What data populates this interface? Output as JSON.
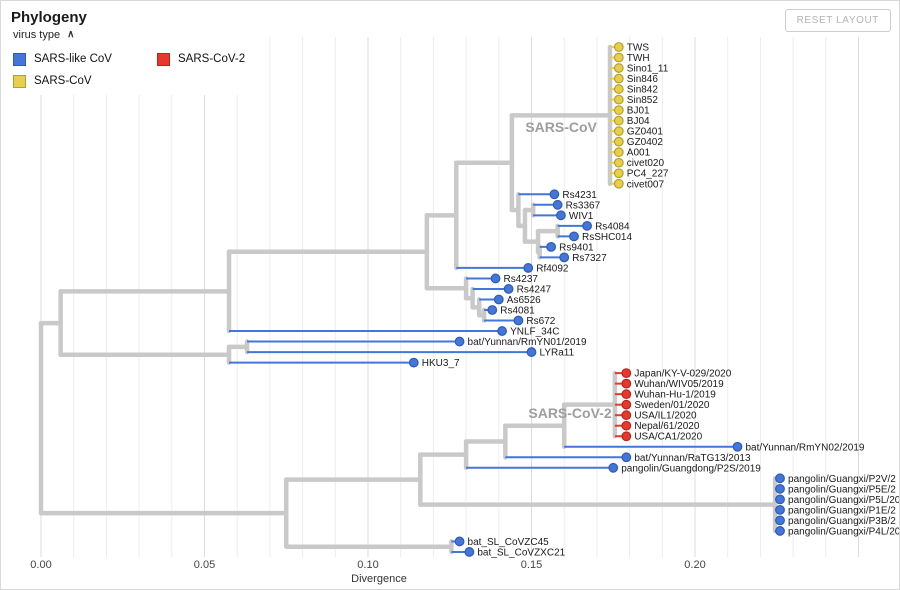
{
  "header": {
    "title": "Phylogeny",
    "reset_button": "RESET LAYOUT"
  },
  "legend": {
    "label": "virus type",
    "collapse_icon": "∧",
    "items": [
      {
        "label": "SARS-like CoV",
        "color": "#4376d8",
        "border": "#2c5cb4"
      },
      {
        "label": "SARS-CoV",
        "color": "#e7cf4b",
        "border": "#b3a02e"
      },
      {
        "label": "SARS-CoV-2",
        "color": "#e8372c",
        "border": "#b4271e"
      }
    ]
  },
  "chart_data": {
    "type": "phylogenetic-tree",
    "layout": "rectangular",
    "xlabel": "Divergence",
    "x_ticks": [
      "0.00",
      "0.05",
      "0.10",
      "0.15",
      "0.20"
    ],
    "x_tick_values": [
      0,
      0.05,
      0.1,
      0.15,
      0.2
    ],
    "xlim": [
      0,
      0.25
    ],
    "grid_step": 0.01,
    "grid_on": true,
    "branch_color": "#c9c9c9",
    "annotations": [
      {
        "text": "SARS-CoV",
        "d_end": 0.17,
        "row": 7.6
      },
      {
        "text": "SARS-CoV-2",
        "d_end": 0.1745,
        "row": 34.8
      }
    ],
    "types": {
      "sars_like": {
        "fill": "#4376d8",
        "stroke": "#2c5cb4"
      },
      "sars": {
        "fill": "#e7cf4b",
        "stroke": "#b3a02e"
      },
      "sars2": {
        "fill": "#e8372c",
        "stroke": "#b4271e"
      }
    },
    "leaves": [
      {
        "name": "TWS",
        "type": "sars",
        "d": 0.1767
      },
      {
        "name": "TWH",
        "type": "sars",
        "d": 0.1767
      },
      {
        "name": "Sino1_11",
        "type": "sars",
        "d": 0.1767
      },
      {
        "name": "Sin846",
        "type": "sars",
        "d": 0.1767
      },
      {
        "name": "Sin842",
        "type": "sars",
        "d": 0.1767
      },
      {
        "name": "Sin852",
        "type": "sars",
        "d": 0.1767
      },
      {
        "name": "BJ01",
        "type": "sars",
        "d": 0.1767
      },
      {
        "name": "BJ04",
        "type": "sars",
        "d": 0.1767
      },
      {
        "name": "GZ0401",
        "type": "sars",
        "d": 0.1767
      },
      {
        "name": "GZ0402",
        "type": "sars",
        "d": 0.1767
      },
      {
        "name": "A001",
        "type": "sars",
        "d": 0.1767
      },
      {
        "name": "civet020",
        "type": "sars",
        "d": 0.1767
      },
      {
        "name": "PC4_227",
        "type": "sars",
        "d": 0.1767
      },
      {
        "name": "civet007",
        "type": "sars",
        "d": 0.1767
      },
      {
        "name": "Rs4231",
        "type": "sars_like",
        "d": 0.157
      },
      {
        "name": "Rs3367",
        "type": "sars_like",
        "d": 0.158
      },
      {
        "name": "WIV1",
        "type": "sars_like",
        "d": 0.159
      },
      {
        "name": "Rs4084",
        "type": "sars_like",
        "d": 0.167
      },
      {
        "name": "RsSHC014",
        "type": "sars_like",
        "d": 0.163
      },
      {
        "name": "Rs9401",
        "type": "sars_like",
        "d": 0.156
      },
      {
        "name": "Rs7327",
        "type": "sars_like",
        "d": 0.16
      },
      {
        "name": "Rf4092",
        "type": "sars_like",
        "d": 0.149
      },
      {
        "name": "Rs4237",
        "type": "sars_like",
        "d": 0.139
      },
      {
        "name": "Rs4247",
        "type": "sars_like",
        "d": 0.143
      },
      {
        "name": "As6526",
        "type": "sars_like",
        "d": 0.14
      },
      {
        "name": "Rs4081",
        "type": "sars_like",
        "d": 0.138
      },
      {
        "name": "Rs672",
        "type": "sars_like",
        "d": 0.146
      },
      {
        "name": "YNLF_34C",
        "type": "sars_like",
        "d": 0.141
      },
      {
        "name": "bat/Yunnan/RmYN01/2019",
        "type": "sars_like",
        "d": 0.128
      },
      {
        "name": "LYRa11",
        "type": "sars_like",
        "d": 0.15
      },
      {
        "name": "HKU3_7",
        "type": "sars_like",
        "d": 0.114
      },
      {
        "name": "Japan/KY-V-029/2020",
        "type": "sars2",
        "d": 0.179
      },
      {
        "name": "Wuhan/WIV05/2019",
        "type": "sars2",
        "d": 0.179
      },
      {
        "name": "Wuhan-Hu-1/2019",
        "type": "sars2",
        "d": 0.179
      },
      {
        "name": "Sweden/01/2020",
        "type": "sars2",
        "d": 0.179
      },
      {
        "name": "USA/IL1/2020",
        "type": "sars2",
        "d": 0.179
      },
      {
        "name": "Nepal/61/2020",
        "type": "sars2",
        "d": 0.179
      },
      {
        "name": "USA/CA1/2020",
        "type": "sars2",
        "d": 0.179
      },
      {
        "name": "bat/Yunnan/RmYN02/2019",
        "type": "sars_like",
        "d": 0.213
      },
      {
        "name": "bat/Yunnan/RaTG13/2013",
        "type": "sars_like",
        "d": 0.179
      },
      {
        "name": "pangolin/Guangdong/P2S/2019",
        "type": "sars_like",
        "d": 0.175
      },
      {
        "name": "pangolin/Guangxi/P2V/2",
        "type": "sars_like",
        "d": 0.226
      },
      {
        "name": "pangolin/Guangxi/P5E/2",
        "type": "sars_like",
        "d": 0.226
      },
      {
        "name": "pangolin/Guangxi/P5L/20",
        "type": "sars_like",
        "d": 0.226
      },
      {
        "name": "pangolin/Guangxi/P1E/2",
        "type": "sars_like",
        "d": 0.226
      },
      {
        "name": "pangolin/Guangxi/P3B/2",
        "type": "sars_like",
        "d": 0.226
      },
      {
        "name": "pangolin/Guangxi/P4L/20",
        "type": "sars_like",
        "d": 0.226
      },
      {
        "name": "bat_SL_CoVZC45",
        "type": "sars_like",
        "d": 0.128
      },
      {
        "name": "bat_SL_CoVZXC21",
        "type": "sars_like",
        "d": 0.131
      }
    ],
    "tree": {
      "d": 0.0,
      "c": [
        {
          "d": 0.006,
          "c": [
            {
              "d": 0.0575,
              "c": [
                {
                  "d": 0.118,
                  "c": [
                    {
                      "d": 0.127,
                      "c": [
                        {
                          "d": 0.144,
                          "c": [
                            {
                              "d": 0.174,
                              "c": [
                                0,
                                1,
                                2,
                                3,
                                4,
                                5,
                                6,
                                7,
                                8,
                                9,
                                10,
                                11,
                                12,
                                13
                              ]
                            },
                            {
                              "d": 0.146,
                              "c": [
                                14,
                                {
                                  "d": 0.148,
                                  "c": [
                                    {
                                      "d": 0.1505,
                                      "c": [
                                        15,
                                        16
                                      ]
                                    },
                                    {
                                      "d": 0.152,
                                      "c": [
                                        {
                                          "d": 0.158,
                                          "c": [
                                            17,
                                            18
                                          ]
                                        },
                                        {
                                          "d": 0.1525,
                                          "c": [
                                            19,
                                            20
                                          ]
                                        }
                                      ]
                                    }
                                  ]
                                }
                              ]
                            }
                          ]
                        },
                        21
                      ]
                    },
                    {
                      "d": 0.13,
                      "c": [
                        22,
                        {
                          "d": 0.132,
                          "c": [
                            23,
                            {
                              "d": 0.134,
                              "c": [
                                24,
                                {
                                  "d": 0.1355,
                                  "c": [
                                    25,
                                    26
                                  ]
                                }
                              ]
                            }
                          ]
                        }
                      ]
                    }
                  ]
                },
                27
              ]
            },
            {
              "d": 0.0575,
              "c": [
                {
                  "d": 0.063,
                  "c": [
                    28,
                    29
                  ]
                },
                30
              ]
            }
          ]
        },
        {
          "d": 0.075,
          "c": [
            {
              "d": 0.116,
              "c": [
                {
                  "d": 0.13,
                  "c": [
                    {
                      "d": 0.142,
                      "c": [
                        {
                          "d": 0.16,
                          "c": [
                            {
                              "d": 0.1755,
                              "c": [
                                31,
                                32,
                                33,
                                34,
                                35,
                                36,
                                37
                              ]
                            },
                            38
                          ]
                        },
                        39
                      ]
                    },
                    40
                  ]
                },
                {
                  "d": 0.2245,
                  "c": [
                    41,
                    42,
                    43,
                    44,
                    45,
                    46
                  ]
                }
              ]
            },
            {
              "d": 0.1255,
              "c": [
                47,
                48
              ]
            }
          ]
        }
      ]
    }
  }
}
